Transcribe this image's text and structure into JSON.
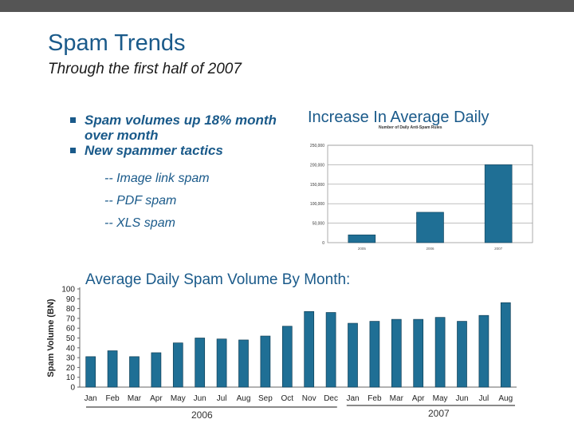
{
  "slide": {
    "title": "Spam Trends",
    "subtitle": "Through the first half of 2007",
    "bullets": [
      "Spam volumes up 18% month over month",
      "New spammer tactics"
    ],
    "sub_bullets": [
      "-- Image link spam",
      "-- PDF spam",
      "-- XLS spam"
    ],
    "small_chart_heading": "Increase In Average Daily",
    "big_chart_heading": "Average Daily Spam Volume By Month:"
  },
  "colors": {
    "bar": "#1f6f95",
    "bar_edge": "#0f3f57",
    "title": "#1a5a8a",
    "topbar": "#555555"
  },
  "chart_data": [
    {
      "type": "bar",
      "title": "Number of Daily Anti-Spam Rules",
      "categories": [
        "2005",
        "2006",
        "2007"
      ],
      "values": [
        20000,
        78000,
        200000
      ],
      "ylim": [
        0,
        250000
      ],
      "yticks": [
        "0",
        "50,000",
        "100,000",
        "150,000",
        "200,000",
        "250,000"
      ],
      "grid": true
    },
    {
      "type": "bar",
      "ylabel": "Spam Volume (BN)",
      "categories": [
        "Jan",
        "Feb",
        "Mar",
        "Apr",
        "May",
        "Jun",
        "Jul",
        "Aug",
        "Sep",
        "Oct",
        "Nov",
        "Dec",
        "Jan",
        "Feb",
        "Mar",
        "Apr",
        "May",
        "Jun",
        "Jul",
        "Aug"
      ],
      "values": [
        31,
        37,
        31,
        35,
        45,
        50,
        49,
        48,
        52,
        62,
        77,
        76,
        65,
        67,
        69,
        69,
        71,
        67,
        73,
        86
      ],
      "ylim": [
        0,
        100
      ],
      "yticks": [
        "0",
        "10",
        "20",
        "30",
        "40",
        "50",
        "60",
        "70",
        "80",
        "90",
        "100"
      ],
      "groups": [
        "2006",
        "2007"
      ],
      "grid": false
    }
  ]
}
